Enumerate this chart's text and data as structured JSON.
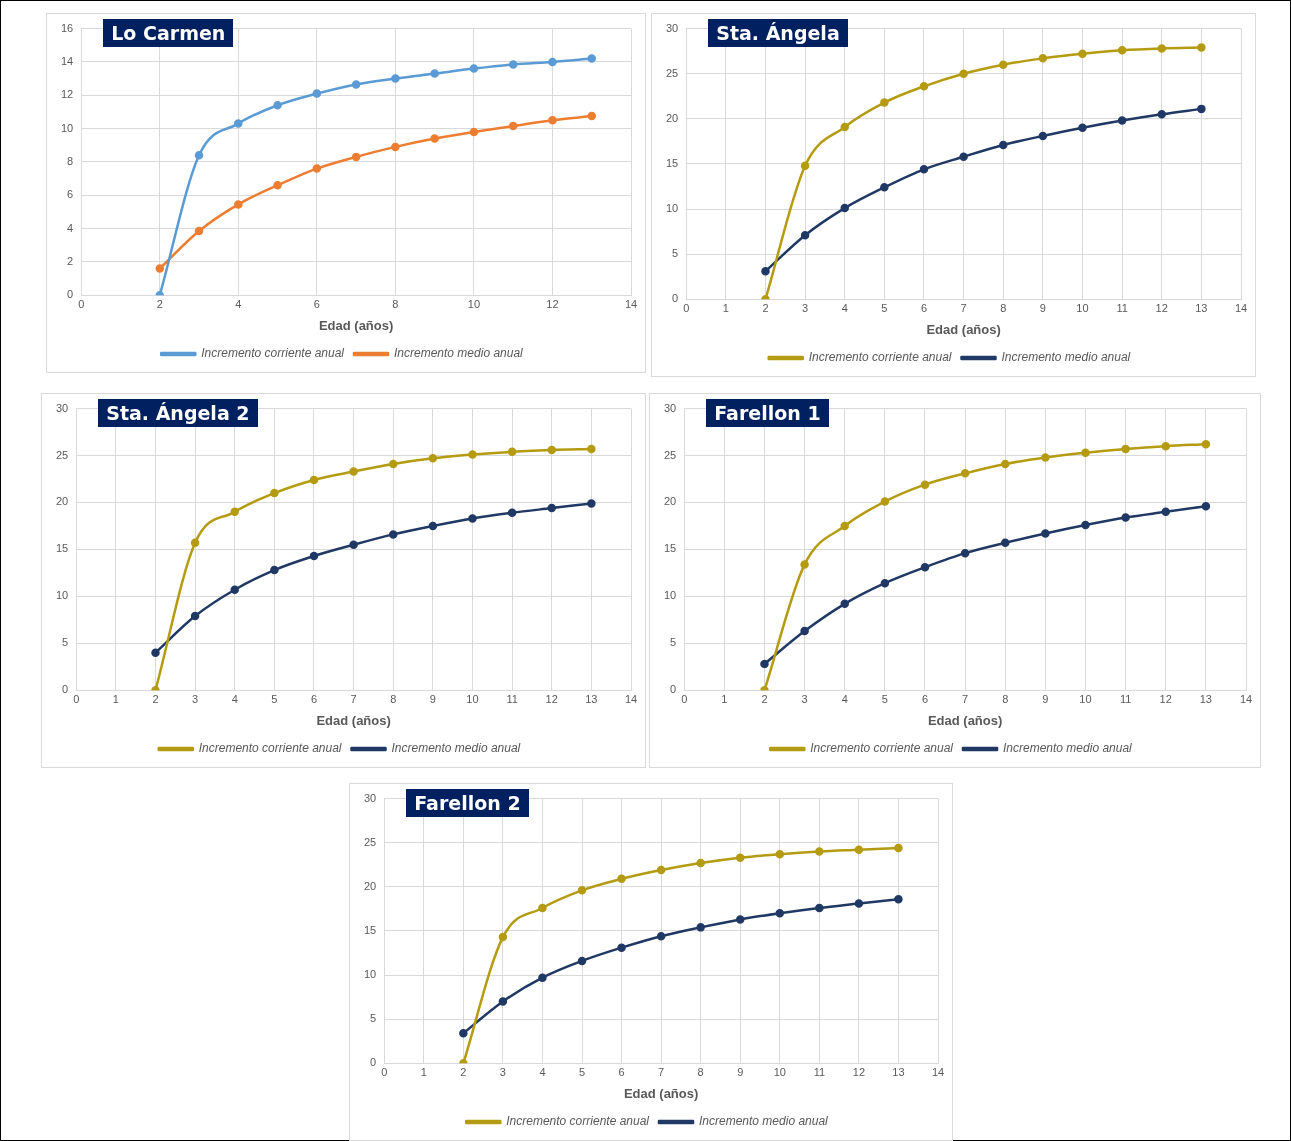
{
  "chart_data": [
    {
      "type": "line",
      "title": "Lo Carmen",
      "xlabel": "Edad (años)",
      "x": [
        2,
        3,
        4,
        5,
        6,
        7,
        8,
        9,
        10,
        11,
        12,
        13
      ],
      "xlim": [
        0,
        14
      ],
      "xticks": [
        0,
        2,
        4,
        6,
        8,
        10,
        12,
        14
      ],
      "ylim": [
        0,
        16
      ],
      "yticks": [
        0,
        2,
        4,
        6,
        8,
        10,
        12,
        14,
        16
      ],
      "grid": true,
      "legend": "bottom",
      "marker": "circle",
      "series": [
        {
          "name": "Incremento corriente anual",
          "color": "#5b9bd5",
          "values": [
            0,
            8.4,
            10.3,
            11.4,
            12.1,
            12.65,
            13.0,
            13.3,
            13.6,
            13.85,
            14.0,
            14.2
          ]
        },
        {
          "name": "Incremento medio anual",
          "color": "#ed7d31",
          "values": [
            1.6,
            3.85,
            5.45,
            6.6,
            7.6,
            8.3,
            8.9,
            9.4,
            9.8,
            10.15,
            10.5,
            10.75
          ]
        }
      ]
    },
    {
      "type": "line",
      "title": "Sta. Ángela",
      "xlabel": "Edad (años)",
      "x": [
        2,
        3,
        4,
        5,
        6,
        7,
        8,
        9,
        10,
        11,
        12,
        13
      ],
      "xlim": [
        0,
        14
      ],
      "xticks": [
        0,
        1,
        2,
        3,
        4,
        5,
        6,
        7,
        8,
        9,
        10,
        11,
        12,
        13,
        14
      ],
      "ylim": [
        0,
        30
      ],
      "yticks": [
        0,
        5,
        10,
        15,
        20,
        25,
        30
      ],
      "grid": true,
      "legend": "bottom",
      "marker": "circle",
      "series": [
        {
          "name": "Incremento corriente anual",
          "color": "#b59b12",
          "values": [
            0,
            14.8,
            19.1,
            21.8,
            23.6,
            25.0,
            26.0,
            26.7,
            27.2,
            27.6,
            27.8,
            27.9
          ]
        },
        {
          "name": "Incremento medio anual",
          "color": "#203864",
          "values": [
            3.1,
            7.1,
            10.1,
            12.4,
            14.4,
            15.8,
            17.1,
            18.1,
            19.0,
            19.8,
            20.5,
            21.1
          ]
        }
      ]
    },
    {
      "type": "line",
      "title": "Sta. Ángela 2",
      "xlabel": "Edad (años)",
      "x": [
        2,
        3,
        4,
        5,
        6,
        7,
        8,
        9,
        10,
        11,
        12,
        13
      ],
      "xlim": [
        0,
        14
      ],
      "xticks": [
        0,
        1,
        2,
        3,
        4,
        5,
        6,
        7,
        8,
        9,
        10,
        11,
        12,
        13,
        14
      ],
      "ylim": [
        0,
        30
      ],
      "yticks": [
        0,
        5,
        10,
        15,
        20,
        25,
        30
      ],
      "grid": true,
      "legend": "bottom",
      "marker": "circle",
      "series": [
        {
          "name": "Incremento corriente anual",
          "color": "#b59b12",
          "values": [
            0,
            15.7,
            19.0,
            21.0,
            22.4,
            23.3,
            24.1,
            24.7,
            25.1,
            25.4,
            25.6,
            25.7
          ]
        },
        {
          "name": "Incremento medio anual",
          "color": "#203864",
          "values": [
            4.0,
            7.9,
            10.7,
            12.8,
            14.3,
            15.5,
            16.6,
            17.5,
            18.3,
            18.9,
            19.4,
            19.9
          ]
        }
      ]
    },
    {
      "type": "line",
      "title": "Farellon 1",
      "xlabel": "Edad (años)",
      "x": [
        2,
        3,
        4,
        5,
        6,
        7,
        8,
        9,
        10,
        11,
        12,
        13
      ],
      "xlim": [
        0,
        14
      ],
      "xticks": [
        0,
        1,
        2,
        3,
        4,
        5,
        6,
        7,
        8,
        9,
        10,
        11,
        12,
        13,
        14
      ],
      "ylim": [
        0,
        30
      ],
      "yticks": [
        0,
        5,
        10,
        15,
        20,
        25,
        30
      ],
      "grid": true,
      "legend": "bottom",
      "marker": "circle",
      "series": [
        {
          "name": "Incremento corriente anual",
          "color": "#b59b12",
          "values": [
            0,
            13.4,
            17.5,
            20.1,
            21.9,
            23.1,
            24.1,
            24.8,
            25.3,
            25.7,
            26.0,
            26.2
          ]
        },
        {
          "name": "Incremento medio anual",
          "color": "#203864",
          "values": [
            2.8,
            6.3,
            9.2,
            11.4,
            13.1,
            14.6,
            15.7,
            16.7,
            17.6,
            18.4,
            19.0,
            19.6
          ]
        }
      ]
    },
    {
      "type": "line",
      "title": "Farellon 2",
      "xlabel": "Edad (años)",
      "x": [
        2,
        3,
        4,
        5,
        6,
        7,
        8,
        9,
        10,
        11,
        12,
        13
      ],
      "xlim": [
        0,
        14
      ],
      "xticks": [
        0,
        1,
        2,
        3,
        4,
        5,
        6,
        7,
        8,
        9,
        10,
        11,
        12,
        13,
        14
      ],
      "ylim": [
        0,
        30
      ],
      "yticks": [
        0,
        5,
        10,
        15,
        20,
        25,
        30
      ],
      "grid": true,
      "legend": "bottom",
      "marker": "circle",
      "series": [
        {
          "name": "Incremento corriente anual",
          "color": "#b59b12",
          "values": [
            0,
            14.3,
            17.6,
            19.6,
            20.9,
            21.9,
            22.7,
            23.3,
            23.7,
            24.0,
            24.2,
            24.4
          ]
        },
        {
          "name": "Incremento medio anual",
          "color": "#203864",
          "values": [
            3.4,
            7.0,
            9.7,
            11.6,
            13.1,
            14.4,
            15.4,
            16.3,
            17.0,
            17.6,
            18.1,
            18.6
          ]
        }
      ]
    }
  ]
}
